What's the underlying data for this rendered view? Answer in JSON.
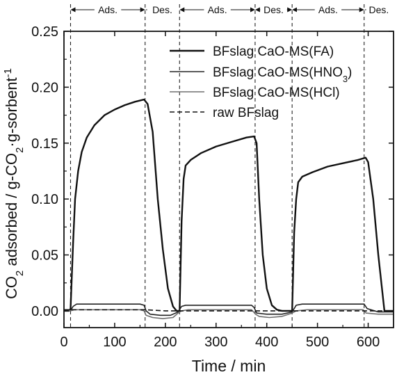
{
  "chart_data": {
    "type": "line",
    "xlabel": "Time / min",
    "ylabel": {
      "parts": [
        {
          "text": "CO",
          "sub": false
        },
        {
          "text": "2",
          "sub": true
        },
        {
          "text": " adsorbed / g-CO",
          "sub": false
        },
        {
          "text": "2",
          "sub": true
        },
        {
          "text": "·g-sorbent",
          "sub": false
        },
        {
          "text": "-1",
          "sup": true
        }
      ]
    },
    "xlim": [
      0,
      650
    ],
    "ylim": [
      -0.015,
      0.25
    ],
    "xticks": [
      0,
      100,
      200,
      300,
      400,
      500,
      600
    ],
    "yticks": [
      0.0,
      0.05,
      0.1,
      0.15,
      0.2,
      0.25
    ],
    "ytick_labels": [
      "0.00",
      "0.05",
      "0.10",
      "0.15",
      "0.20",
      "0.25"
    ],
    "grid": false,
    "legend_position": "top-right",
    "phase_labels": [
      "Ads.",
      "Des.",
      "Ads.",
      "Des.",
      "Ads.",
      "Des."
    ],
    "phase_boundaries": [
      13,
      160,
      228,
      377,
      450,
      592,
      650
    ],
    "series": [
      {
        "name": "BFslag CaO-MS(FA)",
        "legend_parts": [
          {
            "text": "BFslag CaO-MS(FA)"
          }
        ],
        "color": "#111111",
        "dash": "solid",
        "width": 2.4,
        "x": [
          0,
          10,
          13,
          18,
          22,
          28,
          35,
          45,
          60,
          80,
          100,
          120,
          140,
          158,
          165,
          175,
          185,
          195,
          205,
          215,
          222,
          228,
          232,
          236,
          240,
          250,
          270,
          300,
          330,
          360,
          375,
          380,
          385,
          392,
          400,
          410,
          420,
          430,
          440,
          450,
          454,
          458,
          462,
          470,
          490,
          520,
          550,
          580,
          595,
          600,
          610,
          620,
          632,
          640,
          650
        ],
        "y": [
          0,
          0,
          0.002,
          0.06,
          0.1,
          0.125,
          0.142,
          0.155,
          0.166,
          0.175,
          0.18,
          0.184,
          0.187,
          0.189,
          0.185,
          0.16,
          0.1,
          0.055,
          0.02,
          0.004,
          0.0,
          0.0,
          0.08,
          0.118,
          0.13,
          0.135,
          0.141,
          0.147,
          0.151,
          0.155,
          0.156,
          0.15,
          0.1,
          0.05,
          0.02,
          0.005,
          0.001,
          0.0,
          0.0,
          0.0,
          0.07,
          0.1,
          0.115,
          0.12,
          0.124,
          0.129,
          0.132,
          0.135,
          0.137,
          0.133,
          0.1,
          0.05,
          0.0,
          0.0,
          0.0
        ]
      },
      {
        "name": "BFslag CaO-MS(HNO3)",
        "legend_parts": [
          {
            "text": "BFslag CaO-MS(HNO"
          },
          {
            "text": "3",
            "sub": true
          },
          {
            "text": ")"
          }
        ],
        "color": "#222222",
        "dash": "solid",
        "width": 1.6,
        "x": [
          0,
          13,
          18,
          25,
          40,
          80,
          120,
          150,
          158,
          162,
          170,
          190,
          210,
          225,
          232,
          240,
          280,
          330,
          370,
          375,
          380,
          400,
          430,
          450,
          458,
          470,
          520,
          580,
          592,
          598,
          620,
          650
        ],
        "y": [
          0,
          0,
          0.004,
          0.006,
          0.006,
          0.006,
          0.006,
          0.006,
          0.005,
          0.0,
          -0.003,
          -0.004,
          -0.004,
          -0.001,
          0.004,
          0.005,
          0.005,
          0.005,
          0.005,
          0.003,
          -0.002,
          -0.003,
          -0.003,
          -0.001,
          0.005,
          0.006,
          0.006,
          0.006,
          0.006,
          0.002,
          -0.001,
          -0.001
        ]
      },
      {
        "name": "BFslag CaO-MS(HCl)",
        "legend_parts": [
          {
            "text": "BFslag CaO-MS(HCl)"
          }
        ],
        "color": "#6e6e6e",
        "dash": "solid",
        "width": 1.6,
        "x": [
          0,
          13,
          20,
          40,
          80,
          120,
          150,
          158,
          162,
          175,
          195,
          215,
          225,
          232,
          245,
          290,
          340,
          370,
          378,
          385,
          405,
          430,
          450,
          458,
          480,
          540,
          590,
          596,
          620,
          650
        ],
        "y": [
          0,
          0,
          0.001,
          0.001,
          0.001,
          0.001,
          0.001,
          0.0,
          -0.004,
          -0.006,
          -0.007,
          -0.006,
          -0.002,
          0.0,
          0.001,
          0.001,
          0.001,
          0.001,
          -0.003,
          -0.005,
          -0.006,
          -0.005,
          -0.002,
          0.0,
          0.001,
          0.001,
          0.001,
          -0.002,
          -0.003,
          -0.003
        ]
      },
      {
        "name": "raw BFslag",
        "legend_parts": [
          {
            "text": "raw BFslag"
          }
        ],
        "color": "#111111",
        "dash": "dashed",
        "width": 1.6,
        "x": [
          0,
          100,
          160,
          200,
          228,
          300,
          377,
          420,
          450,
          520,
          592,
          650
        ],
        "y": [
          0.001,
          0.001,
          0.001,
          0.0,
          0.0,
          0.0,
          0.0,
          0.0,
          0.0,
          0.0,
          0.0,
          0.0
        ]
      }
    ]
  }
}
